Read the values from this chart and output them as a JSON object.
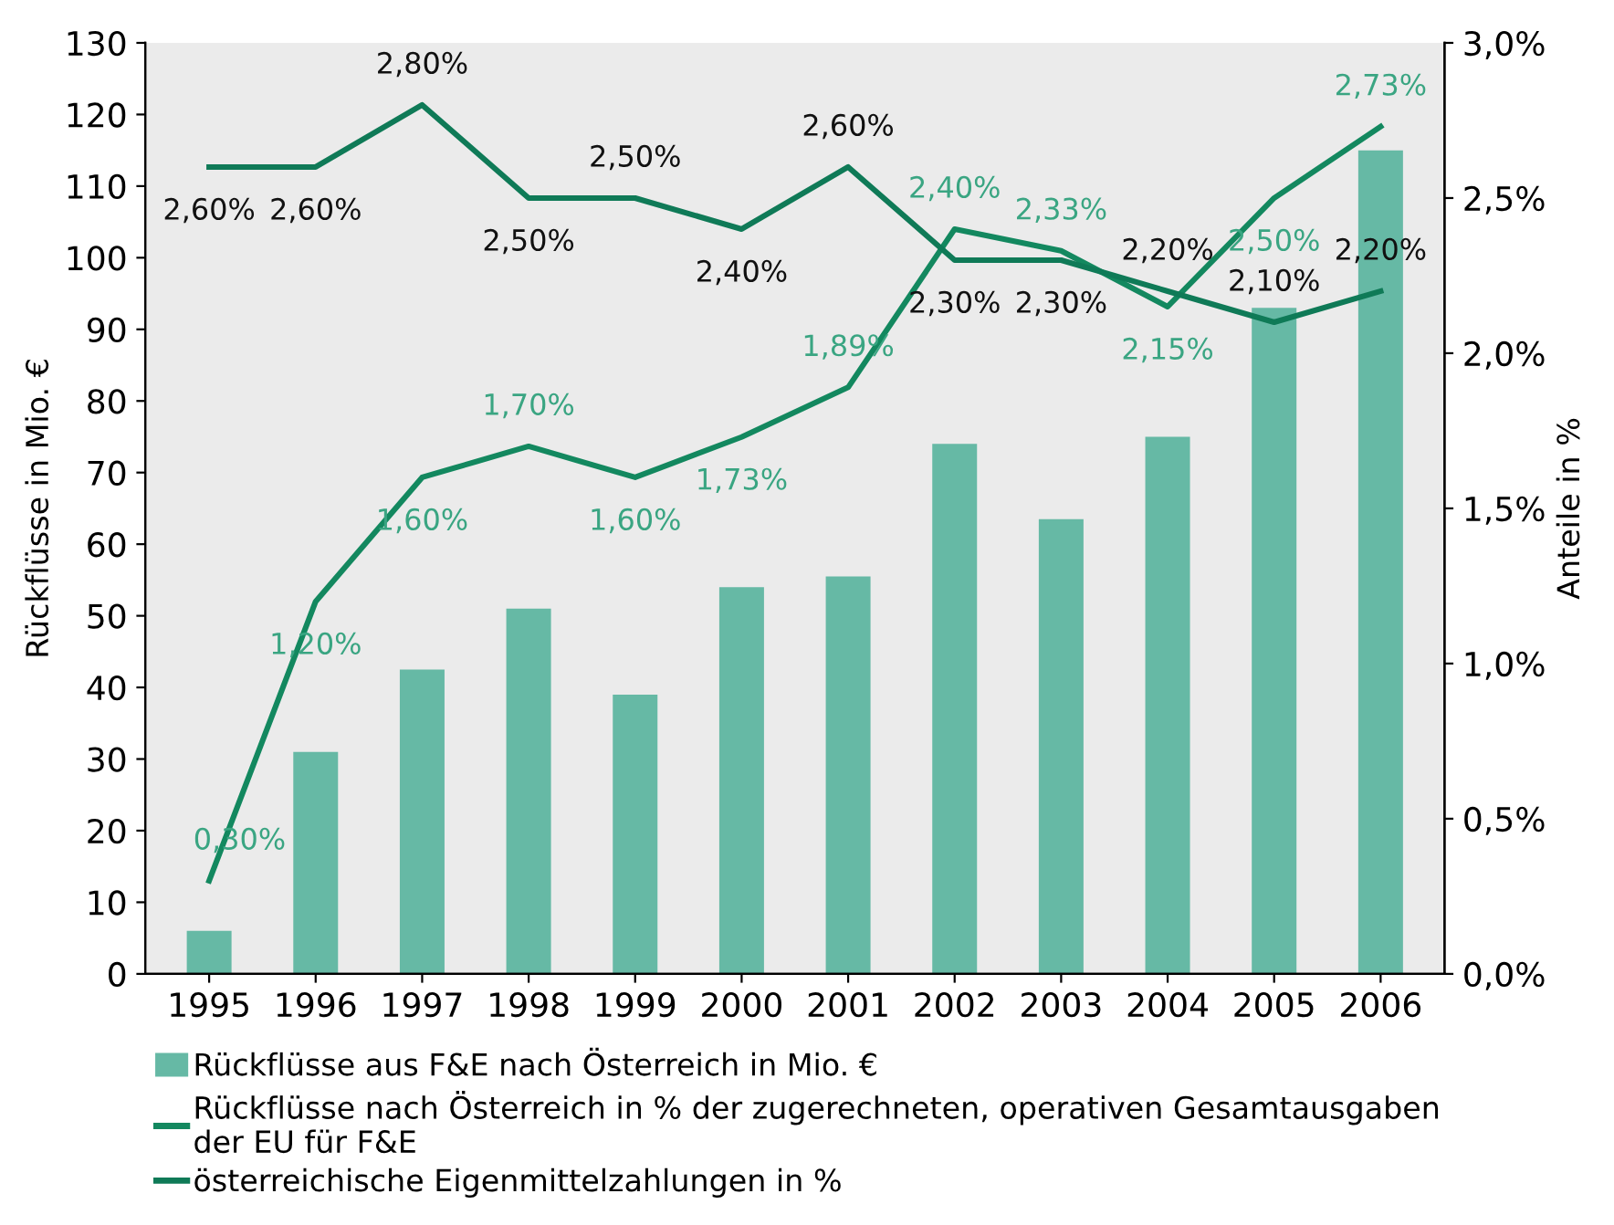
{
  "chart_data": {
    "type": "bar",
    "categories": [
      "1995",
      "1996",
      "1997",
      "1998",
      "1999",
      "2000",
      "2001",
      "2002",
      "2003",
      "2004",
      "2005",
      "2006"
    ],
    "ylabel": "Rückflüsse in Mio. €",
    "y2label": "Anteile in %",
    "ylim": [
      0,
      130
    ],
    "yticks": [
      0,
      10,
      20,
      30,
      40,
      50,
      60,
      70,
      80,
      90,
      100,
      110,
      120,
      130
    ],
    "y2lim": [
      0,
      3
    ],
    "y2ticks": [
      {
        "value": 0,
        "label": "0,0%"
      },
      {
        "value": 0.5,
        "label": "0,5%"
      },
      {
        "value": 1,
        "label": "1,0%"
      },
      {
        "value": 1.5,
        "label": "1,5%"
      },
      {
        "value": 2,
        "label": "2,0%"
      },
      {
        "value": 2.5,
        "label": "2,5%"
      },
      {
        "value": 3,
        "label": "3,0%"
      }
    ],
    "series": [
      {
        "name": "Rückflüsse aus F&E nach Österreich in Mio. €",
        "color": "#66b9a5",
        "values": [
          6,
          31,
          42.5,
          51,
          39,
          54,
          55.5,
          74,
          63.5,
          75,
          93,
          115
        ]
      },
      {
        "name": "Rückflüsse nach Österreich in % der zugerechneten, operativen Gesamtausgaben\nder EU für F&E",
        "type": "line",
        "axis": "y2",
        "color": "#13885f",
        "values": [
          0.3,
          1.2,
          1.6,
          1.7,
          1.6,
          1.73,
          1.89,
          2.4,
          2.33,
          2.15,
          2.5,
          2.73
        ],
        "value_labels": [
          "0,30%",
          "1,20%",
          "1,60%",
          "1,70%",
          "1,60%",
          "1,73%",
          "1,89%",
          "2,40%",
          "2,33%",
          "2,15%",
          "2,50%",
          "2,73%"
        ]
      },
      {
        "name": "österreichische Eigenmittelzahlungen in %",
        "type": "line",
        "axis": "y2",
        "color": "#0f7a57",
        "values": [
          2.6,
          2.6,
          2.8,
          2.5,
          2.5,
          2.4,
          2.6,
          2.3,
          2.3,
          2.2,
          2.1,
          2.2
        ],
        "value_labels": [
          "2,60%",
          "2,60%",
          "2,80%",
          "2,50%",
          "2,50%",
          "2,40%",
          "2,60%",
          "2,30%",
          "2,30%",
          "2,20%",
          "2,10%",
          "2,20%"
        ]
      }
    ],
    "legend": "bottom",
    "grid": false
  }
}
